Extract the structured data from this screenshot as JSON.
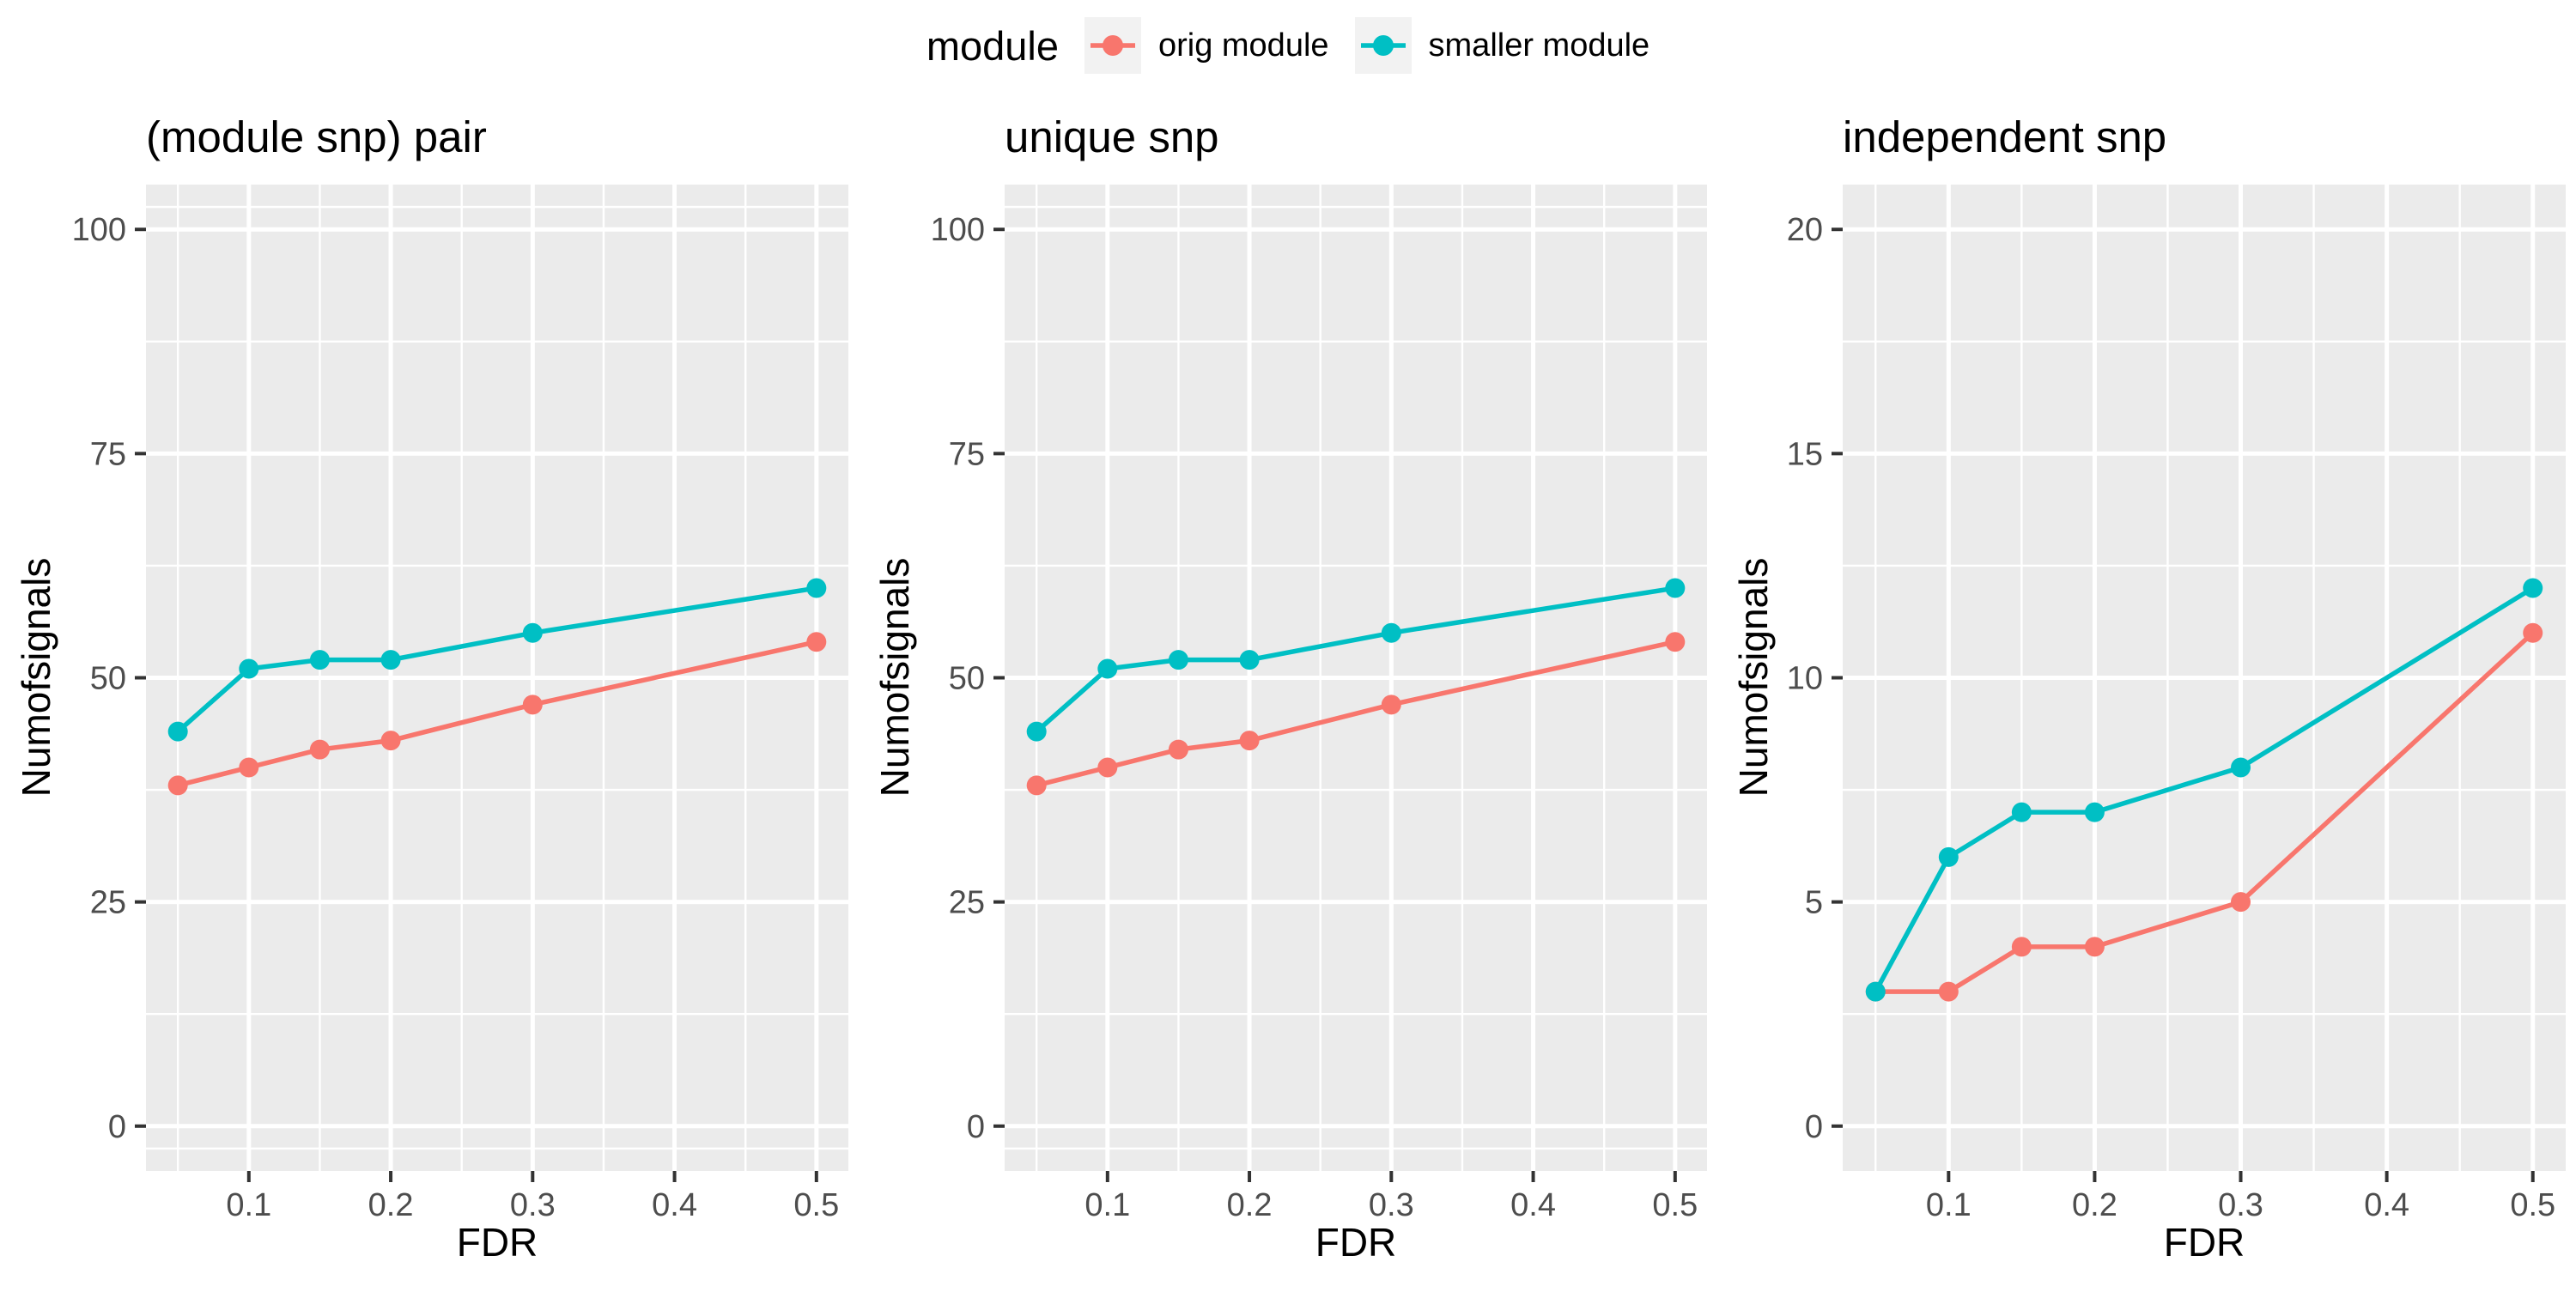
{
  "legend": {
    "title": "module",
    "items": [
      {
        "label": "orig module",
        "color": "#F8766D"
      },
      {
        "label": "smaller module",
        "color": "#00BFC4"
      }
    ]
  },
  "style": {
    "panel_background": "#EBEBEB",
    "grid_color": "#FFFFFF",
    "tick_mark_color": "#333333",
    "tick_label_color": "#4D4D4D",
    "legend_key_background": "#F2F2F2"
  },
  "chart_data": {
    "type": "line",
    "xlabel": "FDR",
    "ylabel": "Numofsignals",
    "x": [
      0.05,
      0.1,
      0.15,
      0.2,
      0.3,
      0.5
    ],
    "x_domain": [
      0.0275,
      0.5225
    ],
    "x_ticks": [
      0.1,
      0.2,
      0.3,
      0.4,
      0.5
    ],
    "x_tick_labels": [
      "0.1",
      "0.2",
      "0.3",
      "0.4",
      "0.5"
    ],
    "x_minor": [
      0.05,
      0.15,
      0.25,
      0.35,
      0.45
    ],
    "grid": "on",
    "legend_position": "top",
    "facets": [
      {
        "title": "(module snp) pair",
        "ylim": [
          -5,
          105
        ],
        "y_ticks": [
          0,
          25,
          50,
          75,
          100
        ],
        "y_minor": [
          -2.5,
          12.5,
          37.5,
          62.5,
          87.5,
          102.5
        ],
        "series": [
          {
            "name": "orig module",
            "color": "#F8766D",
            "values": [
              38,
              40,
              42,
              43,
              47,
              54
            ]
          },
          {
            "name": "smaller module",
            "color": "#00BFC4",
            "values": [
              44,
              51,
              52,
              52,
              55,
              60
            ]
          }
        ]
      },
      {
        "title": "unique snp",
        "ylim": [
          -5,
          105
        ],
        "y_ticks": [
          0,
          25,
          50,
          75,
          100
        ],
        "y_minor": [
          -2.5,
          12.5,
          37.5,
          62.5,
          87.5,
          102.5
        ],
        "series": [
          {
            "name": "orig module",
            "color": "#F8766D",
            "values": [
              38,
              40,
              42,
              43,
              47,
              54
            ]
          },
          {
            "name": "smaller module",
            "color": "#00BFC4",
            "values": [
              44,
              51,
              52,
              52,
              55,
              60
            ]
          }
        ]
      },
      {
        "title": "independent snp",
        "ylim": [
          -1,
          21
        ],
        "y_ticks": [
          0,
          5,
          10,
          15,
          20
        ],
        "y_minor": [
          2.5,
          7.5,
          12.5,
          17.5
        ],
        "series": [
          {
            "name": "orig module",
            "color": "#F8766D",
            "values": [
              3,
              3,
              4,
              4,
              5,
              11
            ]
          },
          {
            "name": "smaller module",
            "color": "#00BFC4",
            "values": [
              3,
              6,
              7,
              7,
              8,
              12
            ]
          }
        ]
      }
    ]
  }
}
